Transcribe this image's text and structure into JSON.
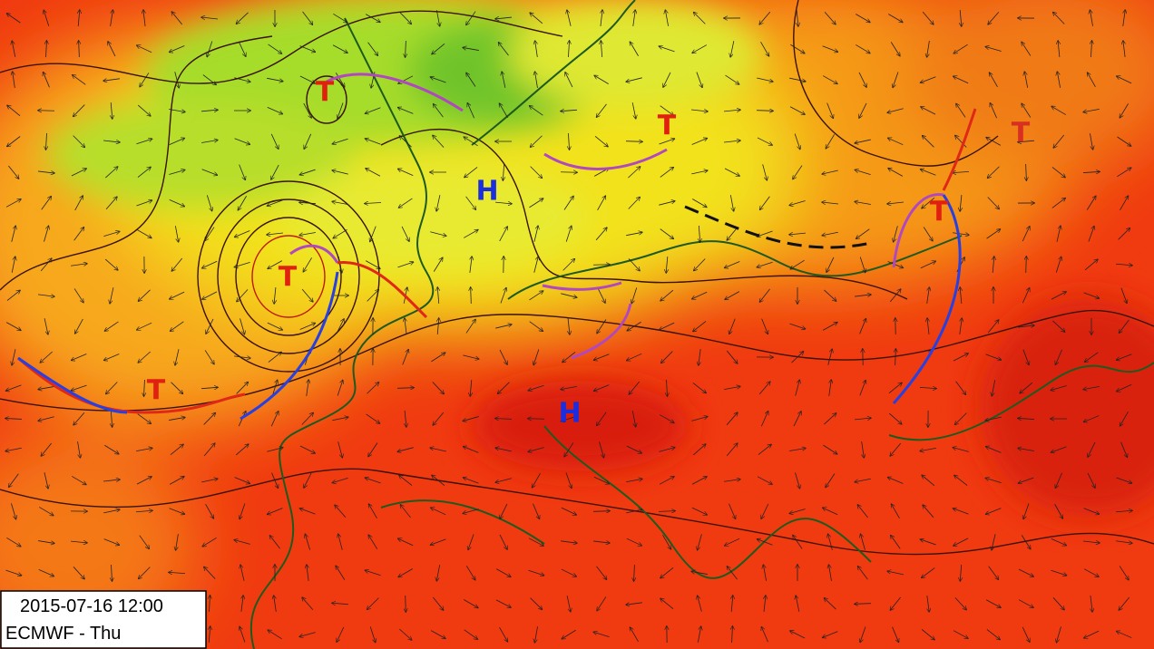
{
  "map": {
    "pressure_centers": [
      {
        "label": "T"
      },
      {
        "label": "T"
      },
      {
        "label": "H"
      },
      {
        "label": "T"
      },
      {
        "label": "T"
      },
      {
        "label": "H"
      },
      {
        "label": "T"
      },
      {
        "label": "T"
      }
    ],
    "info": {
      "datetime": "2015-07-16 12:00",
      "model_day": "ECMWF - Thu"
    }
  }
}
